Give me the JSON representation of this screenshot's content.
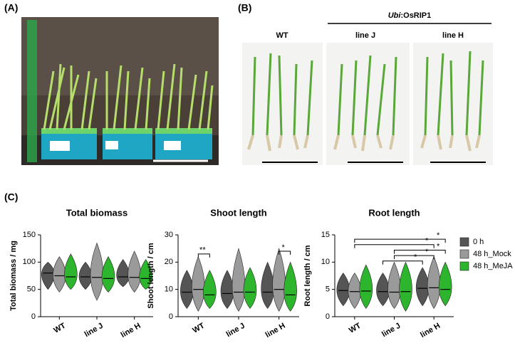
{
  "panels": {
    "a": "(A)",
    "b": "(B)",
    "c": "(C)"
  },
  "photo_labels": {
    "wt": "WT",
    "construct_italic": "Ubi",
    "construct": ":OsRIP1",
    "line_j": "line J",
    "line_h": "line H"
  },
  "legend": [
    {
      "name": "0 h",
      "color": "#555555"
    },
    {
      "name": "48 h_Mock",
      "color": "#9a9a9a"
    },
    {
      "name": "48 h_MeJA",
      "color": "#2db52d"
    }
  ],
  "chart_data": [
    {
      "type": "violin",
      "title": "Total biomass",
      "ylabel": "Total biomass / mg",
      "categories": [
        "WT",
        "line J",
        "line H"
      ],
      "ylim": [
        0,
        150
      ],
      "yticks": [
        0,
        50,
        100,
        150
      ],
      "series": [
        {
          "values": [
            80,
            73,
            73
          ],
          "lows": [
            50,
            50,
            55
          ],
          "highs": [
            100,
            100,
            105
          ]
        },
        {
          "values": [
            75,
            72,
            72
          ],
          "lows": [
            45,
            30,
            45
          ],
          "highs": [
            110,
            135,
            120
          ]
        },
        {
          "values": [
            73,
            70,
            70
          ],
          "lows": [
            50,
            45,
            50
          ],
          "highs": [
            115,
            110,
            105
          ]
        }
      ],
      "annotations": []
    },
    {
      "type": "violin",
      "title": "Shoot length",
      "ylabel": "Shoot length / cm",
      "categories": [
        "WT",
        "line J",
        "line H"
      ],
      "ylim": [
        0,
        30
      ],
      "yticks": [
        0,
        10,
        20,
        30
      ],
      "series": [
        {
          "values": [
            9,
            8.5,
            9
          ],
          "lows": [
            3,
            3,
            3
          ],
          "highs": [
            17,
            17,
            20
          ]
        },
        {
          "values": [
            10,
            9,
            10
          ],
          "lows": [
            2,
            2,
            2
          ],
          "highs": [
            22,
            25,
            25
          ]
        },
        {
          "values": [
            8,
            9,
            8
          ],
          "lows": [
            3,
            3,
            2
          ],
          "highs": [
            17,
            18,
            20
          ]
        }
      ],
      "annotations": [
        "**",
        "*"
      ]
    },
    {
      "type": "violin",
      "title": "Root length",
      "ylabel": "Root length / cm",
      "categories": [
        "WT",
        "line J",
        "line H"
      ],
      "ylim": [
        0,
        15
      ],
      "yticks": [
        0,
        5,
        10,
        15
      ],
      "series": [
        {
          "values": [
            4.8,
            4.6,
            5.2
          ],
          "lows": [
            2,
            2,
            2
          ],
          "highs": [
            8,
            8,
            9
          ]
        },
        {
          "values": [
            4.6,
            4.5,
            5.3
          ],
          "lows": [
            1.5,
            1.5,
            1.5
          ],
          "highs": [
            8,
            10,
            11
          ]
        },
        {
          "values": [
            4.7,
            4.6,
            5
          ],
          "lows": [
            1.5,
            1,
            2
          ],
          "highs": [
            9.5,
            10,
            10
          ]
        }
      ],
      "annotations": [
        "*",
        "*",
        "*",
        "*",
        "*"
      ]
    }
  ]
}
